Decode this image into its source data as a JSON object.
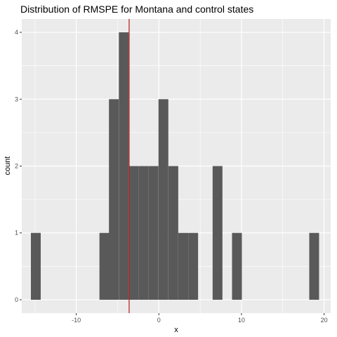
{
  "chart_data": {
    "type": "bar",
    "title": "Distribution of RMSPE for Montana and control states",
    "xlabel": "x",
    "ylabel": "count",
    "xlim": [
      -16.6,
      20.8
    ],
    "ylim": [
      -0.2,
      4.2
    ],
    "x_ticks": [
      -10,
      0,
      10,
      20
    ],
    "y_ticks": [
      0,
      1,
      2,
      3,
      4
    ],
    "bin_width": 1.19,
    "bins": [
      {
        "x": -14.9,
        "count": 1
      },
      {
        "x": -6.6,
        "count": 1
      },
      {
        "x": -5.45,
        "count": 3
      },
      {
        "x": -4.25,
        "count": 4
      },
      {
        "x": -3.05,
        "count": 2
      },
      {
        "x": -1.85,
        "count": 2
      },
      {
        "x": -0.65,
        "count": 2
      },
      {
        "x": 0.55,
        "count": 3
      },
      {
        "x": 1.75,
        "count": 2
      },
      {
        "x": 2.95,
        "count": 1
      },
      {
        "x": 4.15,
        "count": 1
      },
      {
        "x": 7.1,
        "count": 2
      },
      {
        "x": 9.45,
        "count": 1
      },
      {
        "x": 18.8,
        "count": 1
      }
    ],
    "reference_line": {
      "x": -3.6,
      "color": "#b31b1b"
    },
    "bar_color": "#595959",
    "panel_background": "#ebebeb",
    "grid": true,
    "legend": "none"
  }
}
